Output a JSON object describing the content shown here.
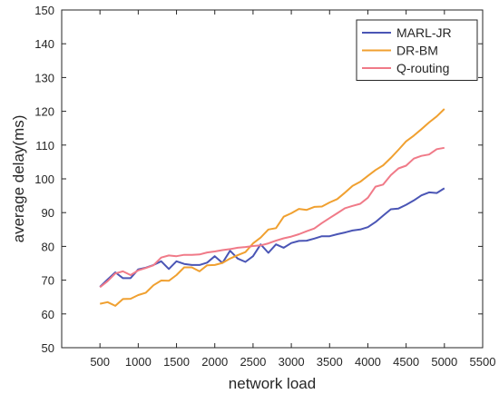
{
  "chart_data": {
    "type": "line",
    "xlabel": "network load",
    "ylabel": "average delay(ms)",
    "xlim": [
      0,
      5500
    ],
    "ylim": [
      50,
      150
    ],
    "xticks": [
      500,
      1000,
      1500,
      2000,
      2500,
      3000,
      3500,
      4000,
      4500,
      5000,
      5500
    ],
    "yticks": [
      50,
      60,
      70,
      80,
      90,
      100,
      110,
      120,
      130,
      140,
      150
    ],
    "grid": false,
    "legend_position": "top-right",
    "series": [
      {
        "name": "MARL-JR",
        "color": "#4a55b5",
        "points": [
          [
            500,
            68
          ],
          [
            600,
            70.2
          ],
          [
            700,
            72.3
          ],
          [
            800,
            70.6
          ],
          [
            900,
            70.6
          ],
          [
            1000,
            73.2
          ],
          [
            1100,
            73.7
          ],
          [
            1200,
            74.5
          ],
          [
            1300,
            75.6
          ],
          [
            1400,
            73.3
          ],
          [
            1500,
            75.6
          ],
          [
            1600,
            74.8
          ],
          [
            1700,
            74.5
          ],
          [
            1800,
            74.5
          ],
          [
            1900,
            75.2
          ],
          [
            2000,
            77.1
          ],
          [
            2100,
            75.1
          ],
          [
            2200,
            78.7
          ],
          [
            2300,
            76.4
          ],
          [
            2400,
            75.4
          ],
          [
            2500,
            77.1
          ],
          [
            2600,
            80.6
          ],
          [
            2700,
            78.1
          ],
          [
            2800,
            80.6
          ],
          [
            2900,
            79.6
          ],
          [
            3000,
            81
          ],
          [
            3100,
            81.6
          ],
          [
            3200,
            81.7
          ],
          [
            3300,
            82.3
          ],
          [
            3400,
            83
          ],
          [
            3500,
            83
          ],
          [
            3600,
            83.6
          ],
          [
            3700,
            84.1
          ],
          [
            3800,
            84.7
          ],
          [
            3900,
            85
          ],
          [
            4000,
            85.7
          ],
          [
            4100,
            87.2
          ],
          [
            4200,
            89.1
          ],
          [
            4300,
            91
          ],
          [
            4400,
            91.2
          ],
          [
            4500,
            92.3
          ],
          [
            4600,
            93.6
          ],
          [
            4700,
            95.1
          ],
          [
            4800,
            96
          ],
          [
            4900,
            95.8
          ],
          [
            5000,
            97.2
          ]
        ]
      },
      {
        "name": "DR-BM",
        "color": "#f0a030",
        "points": [
          [
            500,
            63
          ],
          [
            600,
            63.5
          ],
          [
            700,
            62.4
          ],
          [
            800,
            64.4
          ],
          [
            900,
            64.5
          ],
          [
            1000,
            65.6
          ],
          [
            1100,
            66.3
          ],
          [
            1200,
            68.5
          ],
          [
            1300,
            69.9
          ],
          [
            1400,
            69.8
          ],
          [
            1500,
            71.5
          ],
          [
            1600,
            73.8
          ],
          [
            1700,
            73.8
          ],
          [
            1800,
            72.6
          ],
          [
            1900,
            74.4
          ],
          [
            2000,
            74.5
          ],
          [
            2100,
            75.1
          ],
          [
            2200,
            76.4
          ],
          [
            2300,
            77.4
          ],
          [
            2400,
            78.3
          ],
          [
            2500,
            80.9
          ],
          [
            2600,
            82.6
          ],
          [
            2700,
            85
          ],
          [
            2800,
            85.4
          ],
          [
            2900,
            88.8
          ],
          [
            3000,
            89.8
          ],
          [
            3100,
            91.1
          ],
          [
            3200,
            90.8
          ],
          [
            3300,
            91.7
          ],
          [
            3400,
            91.8
          ],
          [
            3500,
            93
          ],
          [
            3600,
            94
          ],
          [
            3700,
            95.9
          ],
          [
            3800,
            97.9
          ],
          [
            3900,
            99.1
          ],
          [
            4000,
            100.9
          ],
          [
            4100,
            102.6
          ],
          [
            4200,
            104
          ],
          [
            4300,
            106.2
          ],
          [
            4400,
            108.6
          ],
          [
            4500,
            111.1
          ],
          [
            4600,
            112.8
          ],
          [
            4700,
            114.7
          ],
          [
            4800,
            116.7
          ],
          [
            4900,
            118.5
          ],
          [
            5000,
            120.7
          ]
        ]
      },
      {
        "name": "Q-routing",
        "color": "#f07a88",
        "points": [
          [
            500,
            67.9
          ],
          [
            600,
            69.7
          ],
          [
            700,
            72
          ],
          [
            800,
            72.6
          ],
          [
            900,
            71.5
          ],
          [
            1000,
            72.9
          ],
          [
            1100,
            73.6
          ],
          [
            1200,
            74.4
          ],
          [
            1300,
            76.7
          ],
          [
            1400,
            77.3
          ],
          [
            1500,
            77.1
          ],
          [
            1600,
            77.5
          ],
          [
            1700,
            77.5
          ],
          [
            1800,
            77.6
          ],
          [
            1900,
            78.2
          ],
          [
            2000,
            78.5
          ],
          [
            2100,
            78.9
          ],
          [
            2200,
            79.2
          ],
          [
            2300,
            79.6
          ],
          [
            2400,
            79.8
          ],
          [
            2500,
            80.1
          ],
          [
            2600,
            80.3
          ],
          [
            2700,
            80.9
          ],
          [
            2800,
            81.7
          ],
          [
            2900,
            82.4
          ],
          [
            3000,
            82.9
          ],
          [
            3100,
            83.6
          ],
          [
            3200,
            84.5
          ],
          [
            3300,
            85.3
          ],
          [
            3400,
            86.9
          ],
          [
            3500,
            88.4
          ],
          [
            3600,
            89.8
          ],
          [
            3700,
            91.3
          ],
          [
            3800,
            92
          ],
          [
            3900,
            92.6
          ],
          [
            4000,
            94.4
          ],
          [
            4100,
            97.7
          ],
          [
            4200,
            98.3
          ],
          [
            4300,
            101.1
          ],
          [
            4400,
            103.1
          ],
          [
            4500,
            103.9
          ],
          [
            4600,
            106
          ],
          [
            4700,
            106.8
          ],
          [
            4800,
            107.2
          ],
          [
            4900,
            108.8
          ],
          [
            5000,
            109.2
          ]
        ]
      }
    ]
  }
}
